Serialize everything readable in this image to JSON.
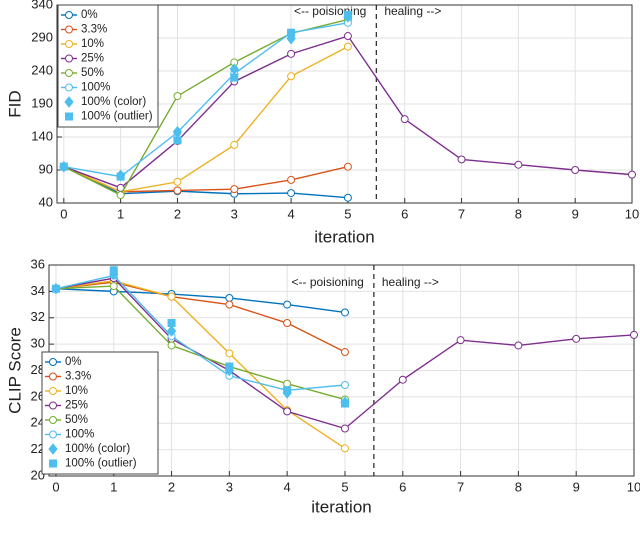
{
  "chart_data": [
    {
      "type": "line",
      "ylabel": "FID",
      "xlabel": "iteration",
      "annotations": [
        "<-- poisioning",
        "healing -->"
      ],
      "vline_x": 5.5,
      "x": [
        0,
        1,
        2,
        3,
        4,
        5,
        6,
        7,
        8,
        9,
        10
      ],
      "xlim": [
        -0.12,
        10
      ],
      "xticks": [
        0,
        1,
        2,
        3,
        4,
        5,
        6,
        7,
        8,
        9,
        10
      ],
      "ylim": [
        40,
        340
      ],
      "yticks": [
        40,
        90,
        140,
        190,
        240,
        290,
        340
      ],
      "grid": true,
      "legend": "upper left",
      "series": [
        {
          "name": "0%",
          "color": "#0072BD",
          "marker": "circle",
          "line": true,
          "values": [
            95,
            54,
            58,
            54,
            55,
            48,
            null,
            null,
            null,
            null,
            null
          ]
        },
        {
          "name": "3.3%",
          "color": "#D95319",
          "marker": "circle",
          "line": true,
          "values": [
            95,
            57,
            59,
            61,
            75,
            95,
            null,
            null,
            null,
            null,
            null
          ]
        },
        {
          "name": "10%",
          "color": "#EDB120",
          "marker": "circle",
          "line": true,
          "values": [
            95,
            57,
            72,
            128,
            232,
            277,
            null,
            null,
            null,
            null,
            null
          ]
        },
        {
          "name": "25%",
          "color": "#7E2F8E",
          "marker": "circle",
          "line": true,
          "values": [
            95,
            63,
            134,
            224,
            266,
            293,
            167,
            106,
            98,
            90,
            83
          ]
        },
        {
          "name": "50%",
          "color": "#77AC30",
          "marker": "circle",
          "line": true,
          "values": [
            95,
            52,
            202,
            253,
            297,
            318,
            null,
            null,
            null,
            null,
            null
          ]
        },
        {
          "name": "100%",
          "color": "#4DBEEE",
          "marker": "circle",
          "line": true,
          "values": [
            95,
            80,
            147,
            236,
            298,
            313,
            null,
            null,
            null,
            null,
            null
          ]
        },
        {
          "name": "100% (color)",
          "color": "#4DBEEE",
          "marker": "diamond",
          "line": false,
          "values": [
            95,
            82,
            148,
            243,
            289,
            322,
            null,
            null,
            null,
            null,
            null
          ]
        },
        {
          "name": "100% (outlier)",
          "color": "#4DBEEE",
          "marker": "square",
          "line": false,
          "values": [
            95,
            80,
            135,
            230,
            298,
            325,
            null,
            null,
            null,
            null,
            null
          ]
        }
      ]
    },
    {
      "type": "line",
      "ylabel": "CLIP Score",
      "xlabel": "iteration",
      "annotations": [
        "<-- poisioning",
        "healing -->"
      ],
      "vline_x": 5.5,
      "x": [
        0,
        1,
        2,
        3,
        4,
        5,
        6,
        7,
        8,
        9,
        10
      ],
      "xlim": [
        -0.12,
        10
      ],
      "xticks": [
        0,
        1,
        2,
        3,
        4,
        5,
        6,
        7,
        8,
        9,
        10
      ],
      "ylim": [
        20,
        36
      ],
      "yticks": [
        20,
        22,
        24,
        26,
        28,
        30,
        32,
        34,
        36
      ],
      "grid": true,
      "legend": "lower left",
      "series": [
        {
          "name": "0%",
          "color": "#0072BD",
          "marker": "circle",
          "line": true,
          "values": [
            34.2,
            34.0,
            33.8,
            33.5,
            33.0,
            32.4,
            null,
            null,
            null,
            null,
            null
          ]
        },
        {
          "name": "3.3%",
          "color": "#D95319",
          "marker": "circle",
          "line": true,
          "values": [
            34.2,
            34.7,
            33.6,
            33.0,
            31.6,
            29.4,
            null,
            null,
            null,
            null,
            null
          ]
        },
        {
          "name": "10%",
          "color": "#EDB120",
          "marker": "circle",
          "line": true,
          "values": [
            34.2,
            34.8,
            33.6,
            29.3,
            25.0,
            22.1,
            null,
            null,
            null,
            null,
            null
          ]
        },
        {
          "name": "25%",
          "color": "#7E2F8E",
          "marker": "circle",
          "line": true,
          "values": [
            34.2,
            35.0,
            30.4,
            28.0,
            24.9,
            23.6,
            27.3,
            30.3,
            29.9,
            30.4,
            30.7
          ]
        },
        {
          "name": "50%",
          "color": "#77AC30",
          "marker": "circle",
          "line": true,
          "values": [
            34.2,
            34.4,
            29.9,
            28.3,
            27.0,
            25.8,
            null,
            null,
            null,
            null,
            null
          ]
        },
        {
          "name": "100%",
          "color": "#4DBEEE",
          "marker": "circle",
          "line": true,
          "values": [
            34.2,
            35.2,
            30.6,
            27.6,
            26.5,
            26.9,
            null,
            null,
            null,
            null,
            null
          ]
        },
        {
          "name": "100% (color)",
          "color": "#4DBEEE",
          "marker": "diamond",
          "line": false,
          "values": [
            34.2,
            35.3,
            31.0,
            28.0,
            26.3,
            25.6,
            null,
            null,
            null,
            null,
            null
          ]
        },
        {
          "name": "100% (outlier)",
          "color": "#4DBEEE",
          "marker": "square",
          "line": false,
          "values": [
            34.2,
            35.6,
            31.6,
            28.3,
            26.5,
            25.5,
            null,
            null,
            null,
            null,
            null
          ]
        }
      ]
    }
  ]
}
